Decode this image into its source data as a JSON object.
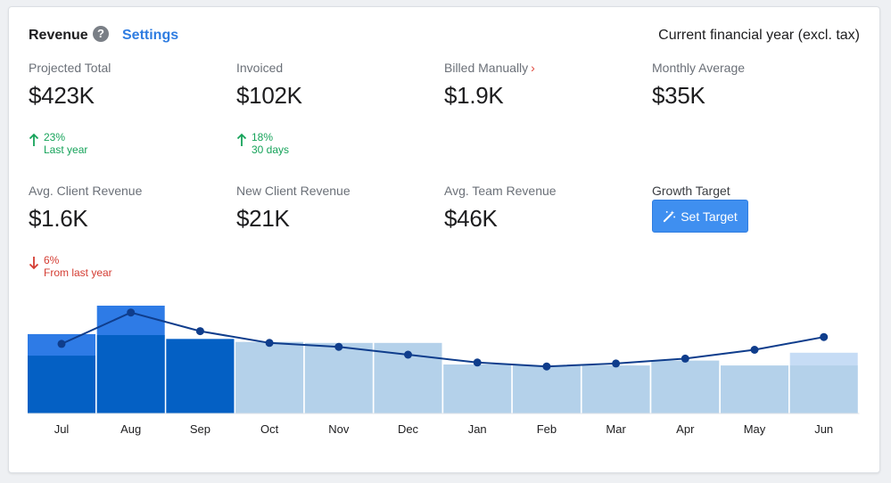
{
  "header": {
    "title": "Revenue",
    "help_icon": "question-circle-icon",
    "settings_label": "Settings",
    "period": "Current financial year (excl. tax)"
  },
  "metrics": {
    "projected_total": {
      "label": "Projected Total",
      "value": "$423K",
      "trend_pct": "23%",
      "trend_note": "Last year",
      "trend_dir": "up"
    },
    "invoiced": {
      "label": "Invoiced",
      "value": "$102K",
      "trend_pct": "18%",
      "trend_note": "30 days",
      "trend_dir": "up"
    },
    "billed_manually": {
      "label": "Billed Manually",
      "chevron": "›",
      "value": "$1.9K"
    },
    "monthly_average": {
      "label": "Monthly Average",
      "value": "$35K"
    },
    "avg_client_revenue": {
      "label": "Avg. Client Revenue",
      "value": "$1.6K",
      "trend_pct": "6%",
      "trend_note": "From last year",
      "trend_dir": "down"
    },
    "new_client_revenue": {
      "label": "New Client Revenue",
      "value": "$21K"
    },
    "avg_team_revenue": {
      "label": "Avg. Team Revenue",
      "value": "$46K"
    },
    "growth_target": {
      "label": "Growth Target",
      "button_label": "Set Target",
      "button_icon": "magic-wand-icon"
    }
  },
  "colors": {
    "accent": "#2f7de1",
    "trend_up": "#16a35a",
    "trend_down": "#d43d33",
    "actual_dark": "#0460c4",
    "actual_bright": "#2e7be6",
    "projected": "#b4d1ea",
    "projected_light": "#c6dcf5",
    "line": "#0f3d8c"
  },
  "chart_data": {
    "type": "bar",
    "categories": [
      "Jul",
      "Aug",
      "Sep",
      "Oct",
      "Nov",
      "Dec",
      "Jan",
      "Feb",
      "Mar",
      "Apr",
      "May",
      "Jun"
    ],
    "series": [
      {
        "kind": "actual",
        "values": [
          59,
          80,
          0,
          0,
          0,
          0,
          0,
          0,
          0,
          0,
          0,
          0
        ]
      },
      {
        "kind": "actual_total",
        "values": [
          81,
          110,
          76,
          0,
          0,
          0,
          0,
          0,
          0,
          0,
          0,
          0
        ]
      },
      {
        "kind": "projected",
        "values": [
          0,
          0,
          0,
          73,
          72,
          72,
          50,
          49,
          49,
          54,
          49,
          49
        ]
      },
      {
        "kind": "projected_extra",
        "values": [
          0,
          0,
          0,
          0,
          0,
          0,
          0,
          0,
          0,
          0,
          0,
          62
        ]
      },
      {
        "kind": "line",
        "values": [
          71,
          103,
          84,
          72,
          68,
          60,
          52,
          48,
          51,
          56,
          65,
          78
        ]
      }
    ],
    "ylim": [
      0,
      120
    ],
    "grid": false,
    "legend": "none"
  }
}
